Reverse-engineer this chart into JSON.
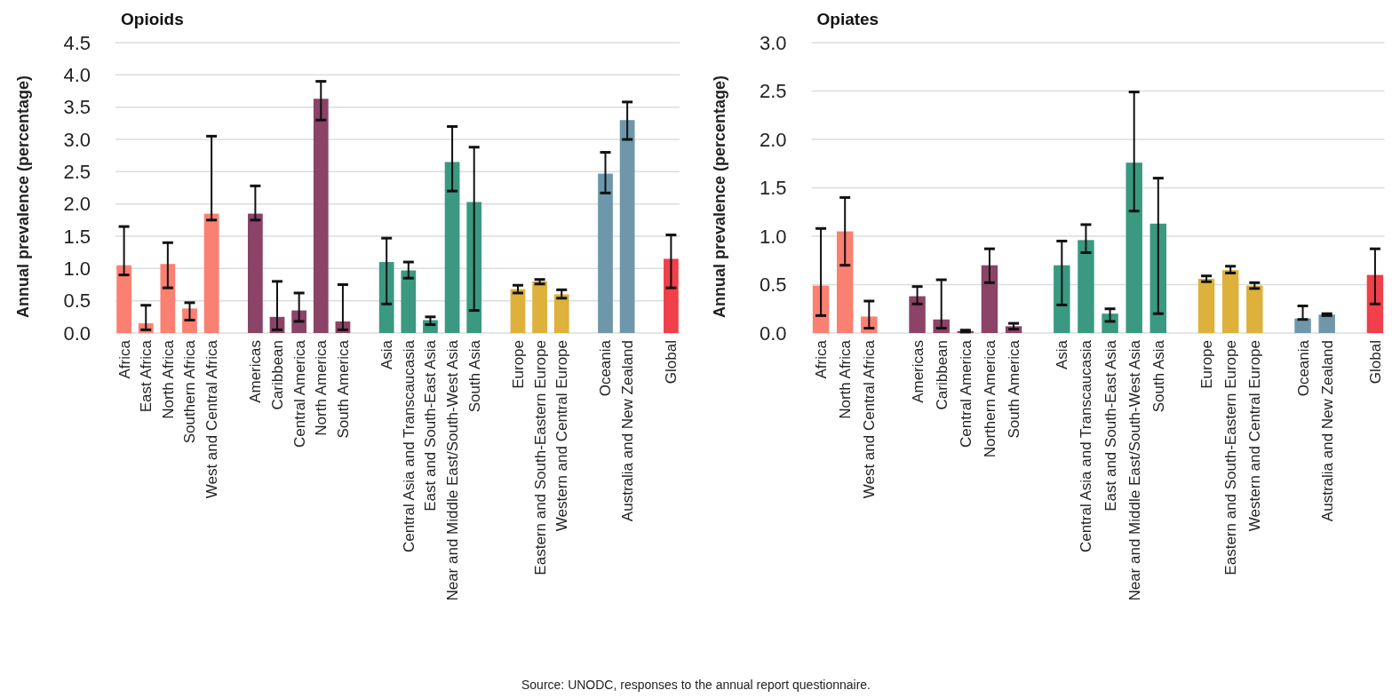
{
  "chart_data": [
    {
      "type": "bar",
      "title": "Opioids",
      "ylabel": "Annual prevalence (percentage)",
      "categories": [
        "Africa",
        "East Africa",
        "North Africa",
        "Southern Africa",
        "West and Central Africa",
        null,
        "Americas",
        "Caribbean",
        "Central America",
        "North America",
        "South America",
        null,
        "Asia",
        "Central Asia and Transcaucasia",
        "East and South-East Asia",
        "Near and Middle East/South-West Asia",
        "South Asia",
        null,
        "Europe",
        "Eastern and South-Eastern Europe",
        "Western and Central Europe",
        null,
        "Oceania",
        "Australia and New Zealand",
        null,
        "Global"
      ],
      "values": [
        1.05,
        0.15,
        1.07,
        0.38,
        1.85,
        null,
        1.85,
        0.25,
        0.35,
        3.63,
        0.18,
        null,
        1.1,
        0.97,
        0.2,
        2.65,
        2.03,
        null,
        0.68,
        0.8,
        0.6,
        null,
        2.47,
        3.3,
        null,
        1.15
      ],
      "errors": [
        [
          0.9,
          1.65
        ],
        [
          0.05,
          0.43
        ],
        [
          0.7,
          1.4
        ],
        [
          0.2,
          0.47
        ],
        [
          1.75,
          3.05
        ],
        null,
        [
          1.75,
          2.28
        ],
        [
          0.05,
          0.8
        ],
        [
          0.18,
          0.62
        ],
        [
          3.3,
          3.9
        ],
        [
          0.05,
          0.75
        ],
        null,
        [
          0.45,
          1.47
        ],
        [
          0.85,
          1.1
        ],
        [
          0.13,
          0.25
        ],
        [
          2.2,
          3.2
        ],
        [
          0.35,
          2.88
        ],
        null,
        [
          0.62,
          0.74
        ],
        [
          0.76,
          0.83
        ],
        [
          0.54,
          0.67
        ],
        null,
        [
          2.17,
          2.8
        ],
        [
          3.0,
          3.58
        ],
        null,
        [
          0.7,
          1.52
        ]
      ],
      "colors": [
        "#fa8072",
        "#fa8072",
        "#fa8072",
        "#fa8072",
        "#fa8072",
        null,
        "#8b4367",
        "#8b4367",
        "#8b4367",
        "#8b4367",
        "#8b4367",
        null,
        "#3a9980",
        "#3a9980",
        "#3a9980",
        "#3a9980",
        "#3a9980",
        null,
        "#ddb13b",
        "#ddb13b",
        "#ddb13b",
        null,
        "#6e97ab",
        "#6e97ab",
        null,
        "#f0404a"
      ],
      "ylim": [
        0,
        4.5
      ],
      "yticks": [
        {
          "value": 0,
          "label": "0.0"
        },
        0.5,
        {
          "value": 1,
          "label": "1.0"
        },
        1.5,
        {
          "value": 2,
          "label": "2.0"
        },
        2.5,
        {
          "value": 3,
          "label": "3.0"
        },
        3.5,
        {
          "value": 4,
          "label": "4.0"
        },
        4.5
      ],
      "grid": "y",
      "annotations": [
        "Source: UNODC, responses to the annual report questionnaire."
      ]
    },
    {
      "type": "bar",
      "title": "Opiates",
      "ylabel": "Annual prevalence (percentage)",
      "categories": [
        "Africa",
        "North Africa",
        "West and Central Africa",
        null,
        "Americas",
        "Caribbean",
        "Central America",
        "Northern America",
        "South America",
        null,
        "Asia",
        "Central Asia and Transcaucasia",
        "East and South-East Asia",
        "Near and Middle East/South-West Asia",
        "South Asia",
        null,
        "Europe",
        "Eastern and South-Eastern Europe",
        "Western and Central Europe",
        null,
        "Oceania",
        "Australia and New Zealand",
        null,
        "Global"
      ],
      "values": [
        0.49,
        1.05,
        0.17,
        null,
        0.38,
        0.14,
        0.02,
        0.7,
        0.07,
        null,
        0.7,
        0.96,
        0.2,
        1.76,
        1.13,
        null,
        0.56,
        0.65,
        0.49,
        null,
        0.15,
        0.19,
        null,
        0.6
      ],
      "errors": [
        [
          0.18,
          1.08
        ],
        [
          0.7,
          1.4
        ],
        [
          0.05,
          0.33
        ],
        null,
        [
          0.3,
          0.48
        ],
        [
          0.05,
          0.55
        ],
        [
          0.01,
          0.03
        ],
        [
          0.52,
          0.87
        ],
        [
          0.04,
          0.1
        ],
        null,
        [
          0.29,
          0.95
        ],
        [
          0.83,
          1.12
        ],
        [
          0.12,
          0.25
        ],
        [
          1.26,
          2.49
        ],
        [
          0.2,
          1.6
        ],
        null,
        [
          0.53,
          0.59
        ],
        [
          0.62,
          0.69
        ],
        [
          0.46,
          0.52
        ],
        null,
        [
          0.14,
          0.28
        ],
        [
          0.18,
          0.2
        ],
        null,
        [
          0.3,
          0.87
        ]
      ],
      "colors": [
        "#fa8072",
        "#fa8072",
        "#fa8072",
        null,
        "#8b4367",
        "#8b4367",
        "#8b4367",
        "#8b4367",
        "#8b4367",
        null,
        "#3a9980",
        "#3a9980",
        "#3a9980",
        "#3a9980",
        "#3a9980",
        null,
        "#ddb13b",
        "#ddb13b",
        "#ddb13b",
        null,
        "#6e97ab",
        "#6e97ab",
        null,
        "#f0404a"
      ],
      "ylim": [
        0,
        3
      ],
      "yticks": [
        {
          "value": 0,
          "label": "0.0"
        },
        0.5,
        {
          "value": 1,
          "label": "1.0"
        },
        1.5,
        {
          "value": 2,
          "label": "2.0"
        },
        2.5,
        {
          "value": 3,
          "label": "3.0"
        }
      ],
      "grid": "y"
    }
  ]
}
